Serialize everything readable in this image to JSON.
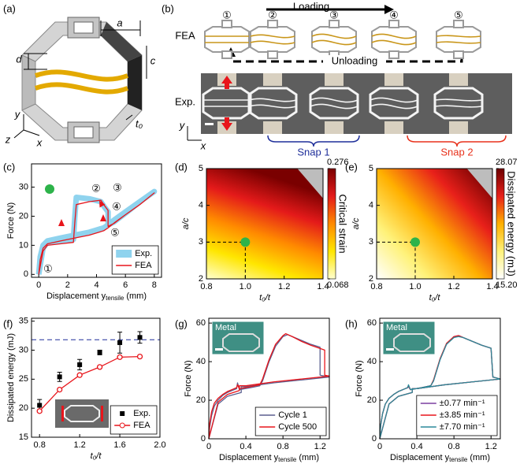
{
  "panel_labels": [
    "(a)",
    "(b)",
    "(c)",
    "(d)",
    "(e)",
    "(f)",
    "(g)",
    "(h)"
  ],
  "panel_a": {
    "labels": [
      "a",
      "c",
      "d",
      "t₀",
      "y",
      "z",
      "x"
    ]
  },
  "panel_b": {
    "loading": "Loading",
    "unloading": "Unloading",
    "fea": "FEA",
    "exp": "Exp.",
    "steps": [
      "①",
      "②",
      "③",
      "④",
      "⑤"
    ],
    "snaps": [
      "Snap 1",
      "Snap 2"
    ],
    "axes": [
      "y",
      "x"
    ]
  },
  "chart_data": [
    {
      "type": "line",
      "xlabel": {
        "main": "Displacement y",
        "sub": "tensile",
        "unit": " (mm)"
      },
      "ylabel": "Force (N)",
      "xlim": [
        -0.5,
        8.5
      ],
      "xticks": [
        0,
        2,
        4,
        6,
        8
      ],
      "ylim": [
        -1,
        38
      ],
      "yticks": [
        0,
        10,
        20,
        30
      ],
      "legend": "lower right",
      "annotations": [
        "①",
        "②",
        "③",
        "④",
        "⑤"
      ],
      "series": [
        {
          "name": "Exp.",
          "color": "#8fd3ee",
          "x": [
            0,
            0.1,
            0.3,
            0.6,
            1.5,
            2.5,
            3.5,
            4.5,
            4.8,
            5.3,
            6,
            7,
            8,
            7,
            6,
            5.2,
            4.8,
            4.8,
            4.5,
            4.3,
            3.5,
            2.6,
            2.5,
            2.4,
            1.5,
            0.6,
            0.3,
            0
          ],
          "values": [
            0,
            6,
            10,
            11.5,
            12.5,
            13.5,
            14.5,
            16,
            17,
            19,
            21.5,
            25,
            28.5,
            25,
            21,
            18,
            17,
            21.5,
            23.5,
            25,
            26,
            26.5,
            20,
            12,
            11.5,
            11,
            9,
            0
          ]
        },
        {
          "name": "FEA",
          "color": "#e8151b",
          "x": [
            0,
            0.1,
            0.3,
            0.6,
            1.5,
            2.5,
            3.5,
            4.5,
            4.8,
            5.3,
            6,
            7,
            8,
            7,
            6,
            5.2,
            4.8,
            4.8,
            4.5,
            4.3,
            3.5,
            2.6,
            2.5,
            2.4,
            1.5,
            0.6,
            0.3,
            0
          ],
          "values": [
            0,
            5,
            9,
            10.5,
            11.5,
            12.5,
            13.5,
            15,
            16,
            18,
            20.5,
            24,
            28,
            24,
            20.5,
            17.5,
            16.5,
            22,
            24,
            25.5,
            25,
            24,
            18,
            11,
            10.5,
            10,
            8,
            0
          ]
        }
      ]
    },
    {
      "type": "heatmap",
      "xlabel": "t₀/t",
      "ylabel": "a/c",
      "xlim": [
        0.8,
        1.4
      ],
      "xticks": [
        0.8,
        {
          "value": 1,
          "label": "1.0"
        },
        1.2,
        1.4
      ],
      "ylim": [
        2,
        5
      ],
      "yticks": [
        2,
        3,
        4,
        5
      ],
      "colors": [
        "#ffffd0",
        "#ffe600",
        "#ff8a00",
        "#e41a1a",
        "#7a0000"
      ],
      "colorbar": {
        "label": "Critical strain",
        "ticks": [
          0.068,
          0.276
        ]
      },
      "point": [
        1,
        3
      ]
    },
    {
      "type": "heatmap",
      "xlabel": "t₀/t",
      "ylabel": "a/c",
      "xlim": [
        0.8,
        1.4
      ],
      "xticks": [
        0.8,
        {
          "value": 1,
          "label": "1.0"
        },
        1.2,
        1.4
      ],
      "ylim": [
        2,
        5
      ],
      "yticks": [
        2,
        3,
        4,
        5
      ],
      "colors": [
        "#ffffff",
        "#fff27a",
        "#ffb000",
        "#e8201a",
        "#6e0000"
      ],
      "colorbar": {
        "label": "Dissipated energy (mJ)",
        "ticks": [
          {
            "value": 15.2,
            "label": "15.20"
          },
          28.07
        ]
      },
      "point": [
        1,
        3
      ]
    },
    {
      "type": "errorbar",
      "xlabel": "t₀/t",
      "ylabel": "Dissipated energy (mJ)",
      "xlim": [
        0.72,
        2.0
      ],
      "xticks": [
        0.8,
        1.2,
        1.6,
        {
          "value": 2,
          "label": "2.0"
        }
      ],
      "ylim": [
        15,
        35.5
      ],
      "yticks": [
        15,
        20,
        25,
        30,
        35
      ],
      "legend": "lower right",
      "reference_line": 31.8,
      "x": [
        0.8,
        1.0,
        1.2,
        1.4,
        1.6,
        1.8
      ],
      "series": [
        {
          "name": "Exp.",
          "color": "#000000",
          "values": [
            20.5,
            25.4,
            27.5,
            29.6,
            31.3,
            32.2
          ],
          "errors": [
            1.0,
            0.8,
            0.9,
            0.4,
            1.8,
            1.0
          ]
        },
        {
          "name": "FEA",
          "color": "#e8151b",
          "values": [
            19.5,
            23.2,
            25.7,
            27.1,
            28.8,
            28.9
          ]
        }
      ]
    },
    {
      "type": "line",
      "xlabel": {
        "main": "Displacement y",
        "sub": "tensile",
        "unit": " (mm)"
      },
      "ylabel": "Force (N)",
      "xlim": [
        0,
        1.3
      ],
      "xticks": [
        0,
        0.4,
        0.8,
        1.2
      ],
      "ylim": [
        0,
        62.5
      ],
      "yticks": [
        0,
        20,
        40,
        60
      ],
      "legend": "lower right",
      "inset_label": "Metal",
      "series": [
        {
          "name": "Cycle 1",
          "color": "#5b5f8f",
          "x": [
            0,
            0.01,
            0.03,
            0.06,
            0.1,
            0.15,
            0.2,
            0.25,
            0.3,
            0.31,
            0.33,
            0.45,
            0.55,
            0.58,
            0.65,
            0.72,
            0.8,
            0.85,
            0.9,
            1.0,
            1.1,
            1.2,
            1.2,
            1.3,
            1.0,
            0.7,
            0.4,
            0.35,
            0.35,
            0.2,
            0.1,
            0
          ],
          "values": [
            0,
            6,
            12,
            17,
            20,
            22.5,
            24,
            25,
            26,
            29,
            25.5,
            26.5,
            27.5,
            30,
            40,
            48,
            53,
            54,
            53,
            51,
            49,
            47.5,
            33,
            32,
            30.5,
            29,
            27,
            27,
            24,
            22,
            18,
            0
          ]
        },
        {
          "name": "Cycle 500",
          "color": "#e8151b",
          "x": [
            0,
            0.01,
            0.03,
            0.06,
            0.1,
            0.15,
            0.2,
            0.25,
            0.3,
            0.31,
            0.33,
            0.45,
            0.55,
            0.58,
            0.65,
            0.72,
            0.8,
            0.83,
            0.9,
            1.0,
            1.1,
            1.25,
            1.25,
            1.3,
            1.0,
            0.7,
            0.4,
            0.33,
            0.33,
            0.2,
            0.1,
            0
          ],
          "values": [
            0,
            8,
            14,
            18.5,
            21,
            23,
            24.5,
            25.5,
            26.5,
            28,
            26,
            27,
            28,
            31,
            41,
            49,
            53.5,
            54.5,
            53,
            50.5,
            48.5,
            46,
            33,
            32.5,
            31,
            29.5,
            27.5,
            27.5,
            25,
            23,
            19,
            0
          ]
        }
      ]
    },
    {
      "type": "line",
      "xlabel": {
        "main": "Displacement y",
        "sub": "tensile",
        "unit": " (mm)"
      },
      "ylabel": "Force (N)",
      "xlim": [
        0,
        1.3
      ],
      "xticks": [
        0,
        0.4,
        0.8,
        1.2
      ],
      "ylim": [
        0,
        62.5
      ],
      "yticks": [
        0,
        20,
        40,
        60
      ],
      "legend": "lower right",
      "inset_label": "Metal",
      "x": [
        0,
        0.01,
        0.03,
        0.06,
        0.1,
        0.15,
        0.2,
        0.25,
        0.3,
        0.31,
        0.33,
        0.45,
        0.55,
        0.58,
        0.65,
        0.72,
        0.8,
        0.85,
        0.9,
        1.0,
        1.1,
        1.2,
        1.22,
        1.3,
        1.0,
        0.7,
        0.4,
        0.35,
        0.35,
        0.2,
        0.1,
        0
      ],
      "series": [
        {
          "name": "±0.77 min⁻¹",
          "color": "#7b3fa0",
          "values": [
            0,
            7,
            13,
            18,
            21,
            23,
            24.5,
            25.5,
            26.5,
            27,
            25.5,
            26.5,
            27.5,
            30,
            41,
            49,
            53,
            53.5,
            52.5,
            50.5,
            48.5,
            47,
            32,
            31,
            29.5,
            28,
            26,
            26,
            24,
            22,
            18,
            0
          ]
        },
        {
          "name": "±3.85 min⁻¹",
          "color": "#e8151b",
          "values": [
            0,
            7,
            13,
            18,
            21,
            23,
            24.5,
            25.5,
            26.5,
            27.5,
            25.5,
            26.5,
            27.5,
            30.5,
            41.5,
            49.5,
            53,
            53.5,
            52.5,
            50.5,
            48.5,
            47,
            32,
            31,
            29.5,
            28,
            26,
            26,
            24,
            22,
            18,
            0
          ]
        },
        {
          "name": "±7.70 min⁻¹",
          "color": "#2a8a9a",
          "values": [
            0,
            7,
            13,
            18,
            21,
            23,
            24.5,
            25.5,
            26.5,
            28,
            25.5,
            26.5,
            27.5,
            30,
            41,
            49,
            52.5,
            53,
            52.5,
            50.5,
            48.5,
            47,
            32,
            31,
            29.5,
            28,
            26,
            26,
            24,
            22,
            18,
            0
          ]
        }
      ]
    }
  ]
}
